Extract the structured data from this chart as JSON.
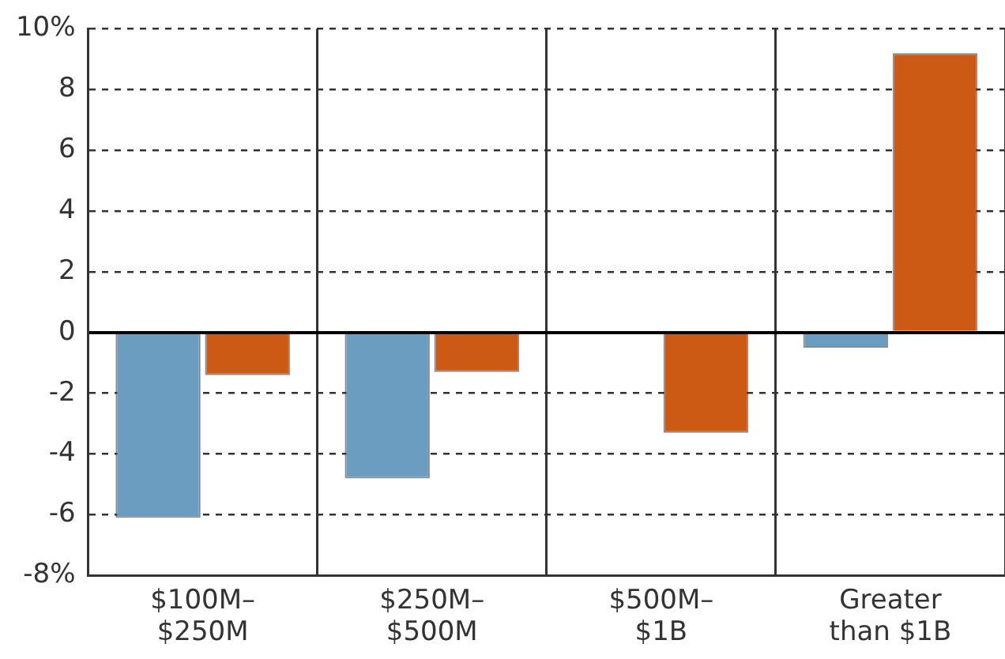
{
  "chart_data": {
    "type": "bar",
    "categories": [
      "$100M–\n$250M",
      "$250M–\n$500M",
      "$500M–\n$1B",
      "Greater\nthan $1B"
    ],
    "series": [
      {
        "color": "#6a9dc0",
        "values": [
          -6.1,
          -4.8,
          null,
          -0.5
        ]
      },
      {
        "color": "#cc5a14",
        "values": [
          -1.4,
          -1.3,
          -3.3,
          9.2
        ]
      }
    ],
    "ylim": [
      -8,
      10
    ],
    "yticks": [
      {
        "value": -8,
        "label": "-8%"
      },
      -6,
      -4,
      -2,
      0,
      2,
      4,
      6,
      8,
      {
        "value": 10,
        "label": "10%"
      }
    ],
    "grid": true,
    "line_style": "dashed",
    "legend": false
  }
}
